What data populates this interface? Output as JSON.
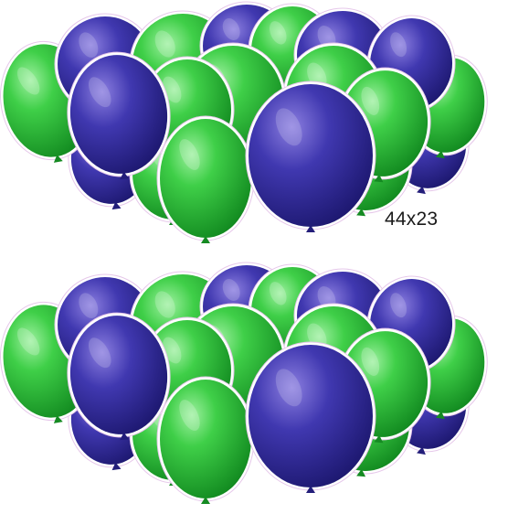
{
  "size_label": "44x23",
  "colors": {
    "green": "#2fbf3a",
    "green_dark": "#158a22",
    "green_light": "#7be07f",
    "purple": "#3d37a8",
    "purple_dark": "#231e7a",
    "purple_light": "#7a6fd0",
    "outline": "#e6c8ea"
  },
  "clusters": [
    {
      "name": "balloon-cluster-top"
    },
    {
      "name": "balloon-cluster-bottom"
    }
  ]
}
